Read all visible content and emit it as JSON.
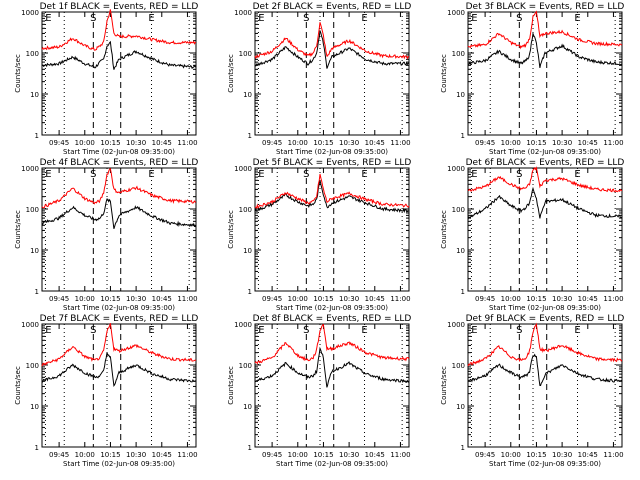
{
  "panel_title_suffix": "BLACK = Events, RED = LLD",
  "xlabel": "Start Time (02-Jun-08 09:35:00)",
  "ylabel": "Counts/sec",
  "x_tick_labels": [
    "09:45",
    "10:00",
    "10:15",
    "10:30",
    "10:45",
    "11:00"
  ],
  "y_tick_labels": [
    "1",
    "10",
    "100",
    "1000"
  ],
  "markers": {
    "start": "S",
    "end": "E"
  },
  "colors": {
    "events": "#000000",
    "lld": "#ff0000",
    "background": "#ffffff"
  },
  "chart_data": [
    {
      "type": "line",
      "title": "Det 1f BLACK = Events, RED = LLD",
      "detector": "Det 1f",
      "xlabel": "Start Time (02-Jun-08 09:35:00)",
      "ylabel": "Counts/sec",
      "x_unit": "minutes after 09:35:00",
      "xlim": [
        0,
        90
      ],
      "ylim": [
        1,
        1000
      ],
      "yscale": "log",
      "vertical_dotted_minutes": [
        2,
        13,
        38,
        64,
        86
      ],
      "vertical_dashed_minutes": [
        30,
        46
      ],
      "series": [
        {
          "name": "Events",
          "color": "black",
          "x": [
            0,
            10,
            18,
            25,
            31,
            34,
            36,
            38,
            40,
            42,
            45,
            55,
            65,
            75,
            90
          ],
          "y": [
            50,
            55,
            80,
            55,
            45,
            60,
            70,
            150,
            180,
            40,
            70,
            110,
            70,
            50,
            45
          ]
        },
        {
          "name": "LLD",
          "color": "red",
          "x": [
            0,
            10,
            18,
            25,
            31,
            34,
            36,
            38,
            40,
            42,
            45,
            55,
            65,
            75,
            90
          ],
          "y": [
            130,
            140,
            230,
            150,
            120,
            150,
            180,
            600,
            1100,
            300,
            250,
            260,
            210,
            180,
            180
          ]
        }
      ]
    },
    {
      "type": "line",
      "title": "Det 2f BLACK = Events, RED = LLD",
      "detector": "Det 2f",
      "xlabel": "Start Time (02-Jun-08 09:35:00)",
      "ylabel": "Counts/sec",
      "x_unit": "minutes after 09:35:00",
      "xlim": [
        0,
        90
      ],
      "ylim": [
        1,
        1000
      ],
      "yscale": "log",
      "vertical_dotted_minutes": [
        2,
        13,
        38,
        64,
        86
      ],
      "vertical_dashed_minutes": [
        30,
        46
      ],
      "series": [
        {
          "name": "Events",
          "color": "black",
          "x": [
            0,
            10,
            18,
            25,
            31,
            34,
            36,
            38,
            40,
            42,
            45,
            55,
            65,
            75,
            90
          ],
          "y": [
            50,
            70,
            140,
            80,
            55,
            70,
            100,
            350,
            170,
            45,
            80,
            130,
            70,
            55,
            55
          ]
        },
        {
          "name": "LLD",
          "color": "red",
          "x": [
            0,
            10,
            18,
            25,
            31,
            34,
            36,
            38,
            40,
            42,
            45,
            55,
            65,
            75,
            90
          ],
          "y": [
            80,
            110,
            230,
            120,
            85,
            100,
            150,
            550,
            260,
            80,
            130,
            200,
            110,
            85,
            80
          ]
        }
      ]
    },
    {
      "type": "line",
      "title": "Det 3f BLACK = Events, RED = LLD",
      "detector": "Det 3f",
      "xlabel": "Start Time (02-Jun-08 09:35:00)",
      "ylabel": "Counts/sec",
      "x_unit": "minutes after 09:35:00",
      "xlim": [
        0,
        90
      ],
      "ylim": [
        1,
        1000
      ],
      "yscale": "log",
      "vertical_dotted_minutes": [
        2,
        13,
        38,
        64,
        86
      ],
      "vertical_dashed_minutes": [
        30,
        46
      ],
      "series": [
        {
          "name": "Events",
          "color": "black",
          "x": [
            0,
            10,
            18,
            25,
            31,
            34,
            36,
            38,
            40,
            42,
            45,
            55,
            65,
            75,
            90
          ],
          "y": [
            55,
            65,
            110,
            70,
            55,
            65,
            90,
            320,
            170,
            45,
            100,
            150,
            80,
            60,
            55
          ]
        },
        {
          "name": "LLD",
          "color": "red",
          "x": [
            0,
            10,
            18,
            25,
            31,
            34,
            36,
            38,
            40,
            42,
            45,
            55,
            65,
            75,
            90
          ],
          "y": [
            140,
            160,
            300,
            180,
            140,
            160,
            230,
            750,
            1000,
            250,
            300,
            330,
            210,
            170,
            160
          ]
        }
      ]
    },
    {
      "type": "line",
      "title": "Det 4f BLACK = Events, RED = LLD",
      "detector": "Det 4f",
      "xlabel": "Start Time (02-Jun-08 09:35:00)",
      "ylabel": "Counts/sec",
      "x_unit": "minutes after 09:35:00",
      "xlim": [
        0,
        90
      ],
      "ylim": [
        1,
        1000
      ],
      "yscale": "log",
      "vertical_dotted_minutes": [
        2,
        13,
        38,
        64,
        86
      ],
      "vertical_dashed_minutes": [
        30,
        46
      ],
      "series": [
        {
          "name": "Events",
          "color": "black",
          "x": [
            0,
            10,
            18,
            25,
            31,
            34,
            36,
            38,
            40,
            42,
            45,
            55,
            65,
            75,
            90
          ],
          "y": [
            45,
            60,
            110,
            70,
            55,
            60,
            80,
            170,
            150,
            35,
            70,
            110,
            65,
            45,
            40
          ]
        },
        {
          "name": "LLD",
          "color": "red",
          "x": [
            0,
            10,
            18,
            25,
            31,
            34,
            36,
            38,
            40,
            42,
            45,
            55,
            65,
            75,
            90
          ],
          "y": [
            110,
            160,
            320,
            180,
            140,
            160,
            250,
            700,
            1000,
            300,
            250,
            330,
            210,
            160,
            150
          ]
        }
      ]
    },
    {
      "type": "line",
      "title": "Det 5f BLACK = Events, RED = LLD",
      "detector": "Det 5f",
      "xlabel": "Start Time (02-Jun-08 09:35:00)",
      "ylabel": "Counts/sec",
      "x_unit": "minutes after 09:35:00",
      "xlim": [
        0,
        90
      ],
      "ylim": [
        1,
        1000
      ],
      "yscale": "log",
      "vertical_dotted_minutes": [
        2,
        13,
        38,
        64,
        86
      ],
      "vertical_dashed_minutes": [
        30,
        46
      ],
      "series": [
        {
          "name": "Events",
          "color": "black",
          "x": [
            0,
            10,
            18,
            25,
            31,
            34,
            36,
            38,
            40,
            42,
            45,
            55,
            65,
            75,
            90
          ],
          "y": [
            90,
            130,
            220,
            150,
            120,
            130,
            170,
            500,
            230,
            110,
            140,
            200,
            140,
            100,
            90
          ]
        },
        {
          "name": "LLD",
          "color": "red",
          "x": [
            0,
            10,
            18,
            25,
            31,
            34,
            36,
            38,
            40,
            42,
            45,
            55,
            65,
            75,
            90
          ],
          "y": [
            110,
            150,
            250,
            180,
            140,
            150,
            200,
            700,
            300,
            150,
            180,
            240,
            170,
            130,
            120
          ]
        }
      ]
    },
    {
      "type": "line",
      "title": "Det 6f BLACK = Events, RED = LLD",
      "detector": "Det 6f",
      "xlabel": "Start Time (02-Jun-08 09:35:00)",
      "ylabel": "Counts/sec",
      "x_unit": "minutes after 09:35:00",
      "xlim": [
        0,
        90
      ],
      "ylim": [
        1,
        1000
      ],
      "yscale": "log",
      "vertical_dotted_minutes": [
        2,
        13,
        38,
        64,
        86
      ],
      "vertical_dashed_minutes": [
        30,
        46
      ],
      "series": [
        {
          "name": "Events",
          "color": "black",
          "x": [
            0,
            10,
            18,
            25,
            31,
            34,
            36,
            38,
            40,
            42,
            45,
            55,
            65,
            75,
            90
          ],
          "y": [
            60,
            100,
            200,
            120,
            90,
            110,
            140,
            320,
            180,
            60,
            150,
            170,
            100,
            70,
            65
          ]
        },
        {
          "name": "LLD",
          "color": "red",
          "x": [
            0,
            10,
            18,
            25,
            31,
            34,
            36,
            38,
            40,
            42,
            45,
            55,
            65,
            75,
            90
          ],
          "y": [
            280,
            350,
            600,
            400,
            310,
            330,
            400,
            900,
            1000,
            350,
            500,
            550,
            380,
            300,
            280
          ]
        }
      ]
    },
    {
      "type": "line",
      "title": "Det 7f BLACK = Events, RED = LLD",
      "detector": "Det 7f",
      "xlabel": "Start Time (02-Jun-08 09:35:00)",
      "ylabel": "Counts/sec",
      "x_unit": "minutes after 09:35:00",
      "xlim": [
        0,
        90
      ],
      "ylim": [
        1,
        1000
      ],
      "yscale": "log",
      "vertical_dotted_minutes": [
        2,
        13,
        38,
        64,
        86
      ],
      "vertical_dashed_minutes": [
        30,
        46
      ],
      "series": [
        {
          "name": "Events",
          "color": "black",
          "x": [
            0,
            10,
            18,
            25,
            31,
            34,
            36,
            38,
            40,
            42,
            45,
            55,
            65,
            75,
            90
          ],
          "y": [
            40,
            55,
            100,
            65,
            50,
            55,
            70,
            200,
            150,
            30,
            65,
            100,
            60,
            45,
            40
          ]
        },
        {
          "name": "LLD",
          "color": "red",
          "x": [
            0,
            10,
            18,
            25,
            31,
            34,
            36,
            38,
            40,
            42,
            45,
            55,
            65,
            75,
            90
          ],
          "y": [
            100,
            140,
            280,
            160,
            130,
            150,
            220,
            650,
            1000,
            250,
            220,
            300,
            190,
            140,
            130
          ]
        }
      ]
    },
    {
      "type": "line",
      "title": "Det 8f BLACK = Events, RED = LLD",
      "detector": "Det 8f",
      "xlabel": "Start Time (02-Jun-08 09:35:00)",
      "ylabel": "Counts/sec",
      "x_unit": "minutes after 09:35:00",
      "xlim": [
        0,
        90
      ],
      "ylim": [
        1,
        1000
      ],
      "yscale": "log",
      "vertical_dotted_minutes": [
        2,
        13,
        38,
        64,
        86
      ],
      "vertical_dashed_minutes": [
        30,
        46
      ],
      "series": [
        {
          "name": "Events",
          "color": "black",
          "x": [
            0,
            10,
            18,
            25,
            31,
            34,
            36,
            38,
            40,
            42,
            45,
            55,
            65,
            75,
            90
          ],
          "y": [
            40,
            55,
            110,
            65,
            50,
            55,
            70,
            250,
            150,
            30,
            70,
            110,
            60,
            45,
            40
          ]
        },
        {
          "name": "LLD",
          "color": "red",
          "x": [
            0,
            10,
            18,
            25,
            31,
            34,
            36,
            38,
            40,
            42,
            45,
            55,
            65,
            75,
            90
          ],
          "y": [
            110,
            150,
            350,
            170,
            130,
            150,
            230,
            700,
            1000,
            250,
            250,
            350,
            200,
            150,
            140
          ]
        }
      ]
    },
    {
      "type": "line",
      "title": "Det 9f BLACK = Events, RED = LLD",
      "detector": "Det 9f",
      "xlabel": "Start Time (02-Jun-08 09:35:00)",
      "ylabel": "Counts/sec",
      "x_unit": "minutes after 09:35:00",
      "xlim": [
        0,
        90
      ],
      "ylim": [
        1,
        1000
      ],
      "yscale": "log",
      "vertical_dotted_minutes": [
        2,
        13,
        38,
        64,
        86
      ],
      "vertical_dashed_minutes": [
        30,
        46
      ],
      "series": [
        {
          "name": "Events",
          "color": "black",
          "x": [
            0,
            10,
            18,
            25,
            31,
            34,
            36,
            38,
            40,
            42,
            45,
            55,
            65,
            75,
            90
          ],
          "y": [
            40,
            55,
            100,
            65,
            50,
            55,
            70,
            180,
            150,
            30,
            60,
            100,
            60,
            45,
            40
          ]
        },
        {
          "name": "LLD",
          "color": "red",
          "x": [
            0,
            10,
            18,
            25,
            31,
            34,
            36,
            38,
            40,
            42,
            45,
            55,
            65,
            75,
            90
          ],
          "y": [
            100,
            140,
            280,
            160,
            130,
            150,
            220,
            650,
            1000,
            250,
            220,
            300,
            190,
            140,
            130
          ]
        }
      ]
    }
  ]
}
